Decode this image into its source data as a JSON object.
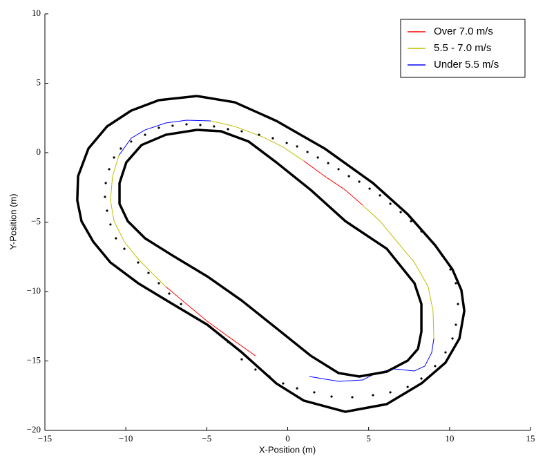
{
  "chart_data": {
    "type": "line",
    "xlabel": "X-Position (m)",
    "ylabel": "Y-Position (m)",
    "xlim": [
      -15,
      15
    ],
    "ylim": [
      -20,
      10
    ],
    "xticks": [
      {
        "value": -15,
        "label": "−15"
      },
      {
        "value": -10,
        "label": "−10"
      },
      {
        "value": -5,
        "label": "−5"
      },
      0,
      5,
      10,
      15
    ],
    "yticks": [
      {
        "value": -20,
        "label": "−20"
      },
      {
        "value": -15,
        "label": "−15"
      },
      {
        "value": -10,
        "label": "−10"
      },
      {
        "value": -5,
        "label": "−5"
      },
      0,
      5,
      10
    ],
    "grid": false,
    "legend": "upper right",
    "series": [
      {
        "name": "Over 7.0 m/s",
        "color": "#ff0000",
        "linewidth": 1,
        "x": [
          -7.53,
          -6.25,
          -4.97,
          -3.69,
          -1.99,
          null,
          4.63,
          3.56,
          2.28,
          1.0
        ],
        "y": [
          -9.65,
          -10.9,
          -12.14,
          -13.23,
          -14.63,
          null,
          -3.78,
          -2.69,
          -1.69,
          -0.6
        ]
      },
      {
        "name": "5.5 - 7.0 m/s",
        "color": "#bfbf00",
        "linewidth": 1,
        "x": [
          -10.43,
          -10.82,
          -10.95,
          -10.73,
          -10.09,
          -9.24,
          -8.39,
          -7.53,
          null,
          9.03,
          8.98,
          8.68,
          7.83,
          6.76,
          5.7,
          4.63,
          null,
          1.0,
          -0.28,
          -1.56,
          -3.27,
          -4.76
        ],
        "y": [
          -0.2,
          -1.69,
          -3.43,
          -4.93,
          -6.42,
          -7.66,
          -8.66,
          -9.65,
          null,
          -13.38,
          -11.39,
          -9.65,
          -7.91,
          -6.42,
          -4.93,
          -3.78,
          null,
          -0.6,
          0.4,
          1.14,
          1.89,
          2.29
        ]
      },
      {
        "name": "Under 5.5 m/s",
        "color": "#0000ff",
        "linewidth": 1,
        "x": [
          -4.76,
          -6.25,
          -7.53,
          -8.81,
          -9.67,
          -10.43,
          null,
          1.34,
          3.14,
          4.63,
          5.48,
          6.55,
          7.83,
          8.47,
          8.9,
          9.03
        ],
        "y": [
          2.29,
          2.34,
          2.14,
          1.64,
          1.04,
          -0.2,
          null,
          -16.12,
          -16.47,
          -16.37,
          -15.87,
          -15.57,
          -15.72,
          -15.37,
          -14.38,
          -13.38
        ]
      },
      {
        "color": "#000000",
        "linewidth": 3.5,
        "x": [
          -5.61,
          -7.96,
          -9.67,
          -11.16,
          -12.31,
          -12.95,
          -13.0,
          -12.74,
          -12.01,
          -10.95,
          -9.24,
          -7.11,
          -4.97,
          -2.84,
          -0.7,
          1.0,
          3.56,
          6.12,
          8.26,
          9.75,
          10.61,
          10.91,
          10.73,
          10.18,
          9.11,
          7.41,
          5.27,
          2.28,
          -0.7,
          -3.27,
          -5.61
        ],
        "y": [
          4.08,
          3.78,
          3.03,
          1.89,
          0.3,
          -1.69,
          -3.43,
          -4.93,
          -6.42,
          -7.91,
          -9.4,
          -10.9,
          -12.39,
          -14.38,
          -16.62,
          -17.86,
          -18.66,
          -18.11,
          -16.62,
          -15.12,
          -13.38,
          -11.39,
          -9.9,
          -8.41,
          -6.67,
          -4.43,
          -2.19,
          0.3,
          2.29,
          3.63,
          4.08
        ]
      },
      {
        "color": "#000000",
        "linewidth": 3.5,
        "x": [
          -5.61,
          -7.53,
          -9.03,
          -9.97,
          -10.39,
          -10.39,
          -9.88,
          -8.81,
          -7.11,
          -4.97,
          -2.84,
          -0.7,
          1.43,
          3.14,
          4.42,
          6.12,
          7.41,
          8.05,
          8.26,
          8.26,
          7.83,
          6.12,
          3.56,
          1.43,
          -0.7,
          -2.41,
          -4.12,
          -5.61
        ],
        "y": [
          1.64,
          1.29,
          0.55,
          -0.7,
          -2.19,
          -3.68,
          -4.93,
          -6.17,
          -7.41,
          -8.91,
          -10.65,
          -12.64,
          -14.63,
          -15.87,
          -16.12,
          -15.77,
          -14.98,
          -14.13,
          -12.89,
          -10.9,
          -9.4,
          -6.92,
          -4.93,
          -2.69,
          -0.7,
          0.8,
          1.54,
          1.64
        ]
      },
      {
        "color": "#000000",
        "marker": "dot",
        "x": [
          -6.25,
          -5.4,
          -4.55,
          -3.69,
          -2.84,
          -1.77,
          -0.92,
          -0.06,
          0.58,
          1.22,
          1.86,
          2.5,
          3.14,
          3.78,
          4.42,
          5.06,
          5.7,
          6.34,
          6.98,
          7.62,
          8.26,
          8.9,
          9.54,
          10.05,
          10.39,
          10.52,
          10.39,
          10.18,
          9.75,
          9.11,
          8.26,
          7.41,
          6.34,
          5.27,
          3.99,
          2.71,
          1.64,
          0.58,
          -0.28,
          -1.13,
          -1.99,
          -2.84,
          -3.69,
          -7.11,
          -7.96,
          -8.81,
          -9.67,
          -10.31,
          -10.73,
          -11.03,
          -11.24,
          -11.29,
          -11.16,
          -10.95,
          -10.61,
          -10.09,
          -9.24,
          -8.6,
          -7.96,
          -7.32,
          -6.59
        ],
        "y": [
          2.04,
          1.99,
          1.89,
          1.69,
          1.54,
          1.29,
          1.04,
          0.7,
          0.45,
          0.05,
          -0.35,
          -0.75,
          -1.19,
          -1.69,
          -2.09,
          -2.59,
          -3.08,
          -3.68,
          -4.28,
          -4.93,
          -5.67,
          -6.42,
          -7.41,
          -8.41,
          -9.4,
          -10.9,
          -12.39,
          -13.38,
          -14.38,
          -15.37,
          -16.27,
          -16.87,
          -17.26,
          -17.46,
          -17.61,
          -17.56,
          -17.26,
          -16.97,
          -16.62,
          -16.12,
          -15.62,
          -14.88,
          -13.63,
          1.94,
          1.79,
          1.29,
          0.8,
          0.3,
          -0.35,
          -1.19,
          -2.19,
          -3.18,
          -4.18,
          -5.17,
          -6.17,
          -6.92,
          -7.91,
          -8.66,
          -9.4,
          -10.15,
          -10.9
        ]
      }
    ]
  }
}
